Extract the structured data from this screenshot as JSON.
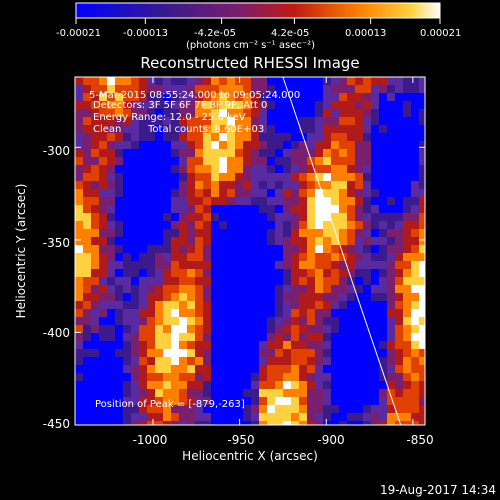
{
  "colorbar": {
    "tick_labels": [
      "-0.00021",
      "-0.00013",
      "-4.2e-05",
      "4.2e-05",
      "0.00013",
      "0.00021"
    ],
    "unit_label": "(photons cm⁻² s⁻¹ asec⁻²)",
    "range": [
      -0.00021,
      0.00021
    ]
  },
  "overlay": {
    "time_range": "5-Mar-2015 08:55:24.000 to 09:05:24.000",
    "detectors": "Detectors: 3F 5F 6F 7F 8F 9F, Att 0",
    "energy": "Energy Range: 12.0 - 25.0 keV",
    "clean": "Clean",
    "counts": "Total counts: 8.60E+03",
    "peak": "Position of Peak = [-879,-263]"
  },
  "footer_timestamp": "19-Aug-2017 14:34",
  "chart_data": {
    "type": "heatmap",
    "title": "Reconstructed RHESSI Image",
    "xlabel": "Heliocentric X (arcsec)",
    "ylabel": "Heliocentric Y (arcsec)",
    "xlim": [
      -1045,
      -843
    ],
    "ylim": [
      -450,
      -262
    ],
    "x_ticks": [
      -1000,
      -950,
      -900,
      -850
    ],
    "y_ticks": [
      -300,
      -350,
      -400,
      -450
    ],
    "x_tick_labels": [
      "-1000",
      "-950",
      "-900",
      "-850"
    ],
    "y_tick_labels": [
      "-300",
      "-350",
      "-400",
      "-450"
    ],
    "colormap": [
      "#0000ff",
      "#3a1a8c",
      "#5a2aa0",
      "#7a1e6e",
      "#b01a1a",
      "#e04000",
      "#ff8000",
      "#ffd040",
      "#ffffff"
    ],
    "grid": false,
    "limb_line": {
      "x": [
        -925,
        -857
      ],
      "y": [
        -262,
        -450
      ]
    }
  }
}
